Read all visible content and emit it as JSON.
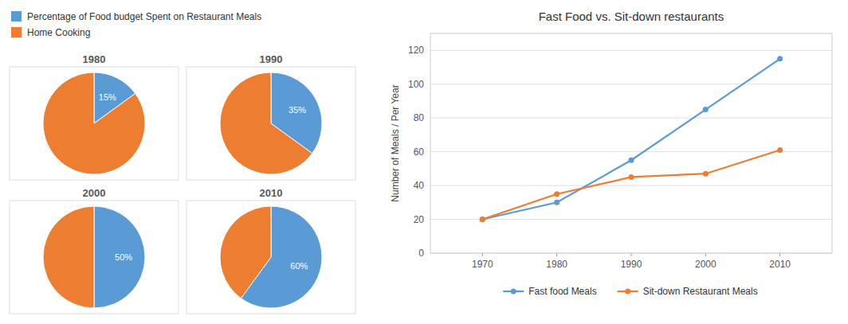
{
  "chart_data": [
    {
      "type": "pie",
      "title": "1980",
      "categories": [
        "Percentage of Food budget Spent on Restaurant Meals",
        "Home Cooking"
      ],
      "values": [
        15,
        85
      ],
      "value_labels": [
        "15%",
        null
      ],
      "colors": [
        "#5B9BD5",
        "#ED7D31"
      ],
      "data_labels": true
    },
    {
      "type": "pie",
      "title": "1990",
      "categories": [
        "Percentage of Food budget Spent on Restaurant Meals",
        "Home Cooking"
      ],
      "values": [
        35,
        65
      ],
      "value_labels": [
        "35%",
        null
      ],
      "colors": [
        "#5B9BD5",
        "#ED7D31"
      ],
      "data_labels": true
    },
    {
      "type": "pie",
      "title": "2000",
      "categories": [
        "Percentage of Food budget Spent on Restaurant Meals",
        "Home Cooking"
      ],
      "values": [
        50,
        50
      ],
      "value_labels": [
        "50%",
        null
      ],
      "colors": [
        "#5B9BD5",
        "#ED7D31"
      ],
      "data_labels": true
    },
    {
      "type": "pie",
      "title": "2010",
      "categories": [
        "Percentage of Food budget Spent on Restaurant Meals",
        "Home Cooking"
      ],
      "values": [
        60,
        40
      ],
      "value_labels": [
        "60%",
        null
      ],
      "colors": [
        "#5B9BD5",
        "#ED7D31"
      ],
      "data_labels": true
    },
    {
      "type": "line",
      "title": "Fast Food vs. Sit-down restaurants",
      "y_label": "Number of Meals / Per Year",
      "x": [
        1970,
        1980,
        1990,
        2000,
        2010
      ],
      "xlim": [
        1963,
        2017
      ],
      "xticks": [
        1970,
        1980,
        1990,
        2000,
        2010
      ],
      "ylim": [
        0,
        130
      ],
      "yticks": [
        0,
        20,
        40,
        60,
        80,
        100,
        120
      ],
      "grid": true,
      "legend": "bottom",
      "series": [
        {
          "name": "Fast food Meals",
          "color": "#5B9BD5",
          "marker": "circle",
          "values": [
            20,
            30,
            55,
            85,
            115
          ]
        },
        {
          "name": "Sit-down Restaurant Meals",
          "color": "#ED7D31",
          "marker": "circle",
          "values": [
            20,
            35,
            45,
            47,
            61
          ]
        }
      ]
    }
  ]
}
